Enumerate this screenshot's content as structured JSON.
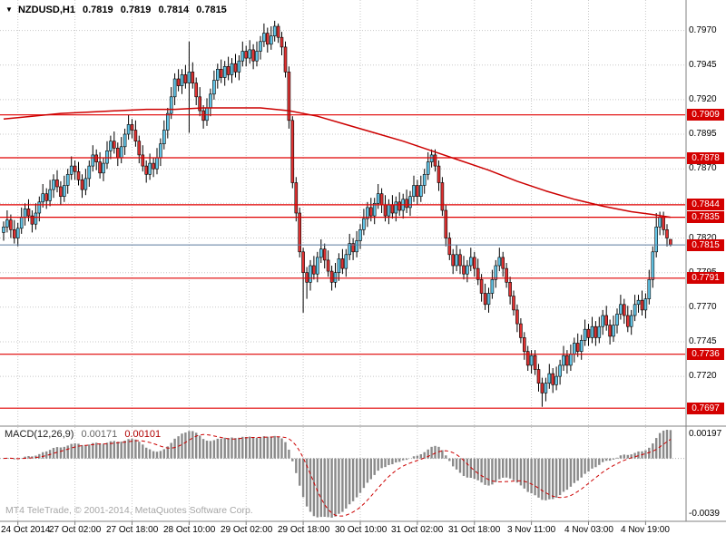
{
  "window": {
    "collapse_icon": "▼",
    "symbol": "NZDUSD,H1",
    "open": "0.7819",
    "high": "0.7819",
    "low": "0.7814",
    "close": "0.7815"
  },
  "watermark": "MT4 TeleTrade, © 2001-2014, MetaQuotes Software Corp.",
  "chart_data": {
    "type": "candlestick",
    "symbol": "NZDUSD",
    "timeframe": "H1",
    "price_axis": {
      "ticks": [
        0.797,
        0.7945,
        0.792,
        0.7895,
        0.787,
        0.7845,
        0.782,
        0.7795,
        0.777,
        0.7745,
        0.772
      ],
      "ylim": [
        0.7686,
        0.7992
      ]
    },
    "time_axis": {
      "labels": [
        "24 Oct 2014",
        "27 Oct 02:00",
        "27 Oct 18:00",
        "28 Oct 10:00",
        "29 Oct 02:00",
        "29 Oct 18:00",
        "30 Oct 10:00",
        "31 Oct 02:00",
        "31 Oct 18:00",
        "3 Nov 11:00",
        "4 Nov 03:00",
        "4 Nov 19:00"
      ],
      "label_bar_indexes": [
        4,
        20,
        36,
        52,
        68,
        84,
        100,
        116,
        132,
        148,
        164,
        180
      ]
    },
    "levels": [
      0.7909,
      0.7878,
      0.7844,
      0.7835,
      0.7791,
      0.7736,
      0.7697
    ],
    "current_price": 0.7815,
    "candles": [
      [
        0.7824,
        0.7832,
        0.7818,
        0.7828
      ],
      [
        0.7828,
        0.784,
        0.7824,
        0.7833
      ],
      [
        0.7833,
        0.7837,
        0.782,
        0.7826
      ],
      [
        0.7826,
        0.7833,
        0.7816,
        0.782
      ],
      [
        0.782,
        0.7831,
        0.7814,
        0.7827
      ],
      [
        0.7827,
        0.7842,
        0.7823,
        0.7835
      ],
      [
        0.7835,
        0.7845,
        0.7829,
        0.7841
      ],
      [
        0.7841,
        0.7848,
        0.7832,
        0.7836
      ],
      [
        0.7836,
        0.784,
        0.7824,
        0.783
      ],
      [
        0.783,
        0.7845,
        0.7826,
        0.7838
      ],
      [
        0.7838,
        0.785,
        0.7832,
        0.7846
      ],
      [
        0.7846,
        0.7859,
        0.7842,
        0.7852
      ],
      [
        0.7852,
        0.7856,
        0.7841,
        0.7847
      ],
      [
        0.7847,
        0.7862,
        0.7843,
        0.7855
      ],
      [
        0.7855,
        0.7866,
        0.7849,
        0.7862
      ],
      [
        0.7862,
        0.7869,
        0.7853,
        0.7857
      ],
      [
        0.7857,
        0.7861,
        0.7844,
        0.785
      ],
      [
        0.785,
        0.7865,
        0.7846,
        0.7858
      ],
      [
        0.7858,
        0.787,
        0.7852,
        0.7866
      ],
      [
        0.7866,
        0.7879,
        0.7862,
        0.7872
      ],
      [
        0.7872,
        0.7876,
        0.7862,
        0.7868
      ],
      [
        0.7868,
        0.7875,
        0.7858,
        0.7862
      ],
      [
        0.7862,
        0.7866,
        0.7849,
        0.7855
      ],
      [
        0.7855,
        0.787,
        0.7851,
        0.7863
      ],
      [
        0.7863,
        0.7876,
        0.7857,
        0.7872
      ],
      [
        0.7872,
        0.7887,
        0.7868,
        0.788
      ],
      [
        0.788,
        0.7884,
        0.7869,
        0.7875
      ],
      [
        0.7875,
        0.7882,
        0.7863,
        0.7867
      ],
      [
        0.7867,
        0.7878,
        0.7861,
        0.7874
      ],
      [
        0.7874,
        0.789,
        0.787,
        0.7883
      ],
      [
        0.7883,
        0.7894,
        0.7877,
        0.789
      ],
      [
        0.789,
        0.7897,
        0.7881,
        0.7885
      ],
      [
        0.7885,
        0.7889,
        0.7872,
        0.7878
      ],
      [
        0.7878,
        0.7893,
        0.7874,
        0.7886
      ],
      [
        0.7886,
        0.7899,
        0.788,
        0.7895
      ],
      [
        0.7895,
        0.7909,
        0.7891,
        0.7902
      ],
      [
        0.7902,
        0.7906,
        0.7892,
        0.7898
      ],
      [
        0.7898,
        0.7905,
        0.7886,
        0.789
      ],
      [
        0.789,
        0.7894,
        0.7874,
        0.788
      ],
      [
        0.788,
        0.7887,
        0.7868,
        0.7872
      ],
      [
        0.7872,
        0.7876,
        0.786,
        0.7866
      ],
      [
        0.7866,
        0.7881,
        0.7862,
        0.7874
      ],
      [
        0.7874,
        0.7878,
        0.7864,
        0.787
      ],
      [
        0.787,
        0.7885,
        0.7866,
        0.7878
      ],
      [
        0.7878,
        0.7892,
        0.7872,
        0.7888
      ],
      [
        0.7888,
        0.7905,
        0.7884,
        0.7898
      ],
      [
        0.7898,
        0.7914,
        0.7892,
        0.791
      ],
      [
        0.791,
        0.7929,
        0.7906,
        0.7922
      ],
      [
        0.7922,
        0.7939,
        0.7916,
        0.7935
      ],
      [
        0.7935,
        0.7942,
        0.7926,
        0.793
      ],
      [
        0.793,
        0.7942,
        0.7924,
        0.7938
      ],
      [
        0.7938,
        0.7945,
        0.7928,
        0.7932
      ],
      [
        0.7932,
        0.7962,
        0.7896,
        0.794
      ],
      [
        0.794,
        0.7947,
        0.7928,
        0.7932
      ],
      [
        0.7932,
        0.7936,
        0.7916,
        0.7922
      ],
      [
        0.7922,
        0.7929,
        0.7908,
        0.7912
      ],
      [
        0.7912,
        0.7916,
        0.7899,
        0.7905
      ],
      [
        0.7905,
        0.7921,
        0.7901,
        0.7914
      ],
      [
        0.7914,
        0.7928,
        0.7908,
        0.7924
      ],
      [
        0.7924,
        0.7941,
        0.792,
        0.7934
      ],
      [
        0.7934,
        0.7946,
        0.7928,
        0.7942
      ],
      [
        0.7942,
        0.7949,
        0.7932,
        0.7936
      ],
      [
        0.7936,
        0.7948,
        0.793,
        0.7944
      ],
      [
        0.7944,
        0.7951,
        0.7934,
        0.7938
      ],
      [
        0.7938,
        0.795,
        0.7932,
        0.7946
      ],
      [
        0.7946,
        0.7953,
        0.7936,
        0.794
      ],
      [
        0.794,
        0.7952,
        0.7934,
        0.7948
      ],
      [
        0.7948,
        0.7962,
        0.7944,
        0.7955
      ],
      [
        0.7955,
        0.7959,
        0.7944,
        0.795
      ],
      [
        0.795,
        0.7963,
        0.7946,
        0.7956
      ],
      [
        0.7956,
        0.796,
        0.7942,
        0.7948
      ],
      [
        0.7948,
        0.7962,
        0.7944,
        0.7955
      ],
      [
        0.7955,
        0.7966,
        0.7949,
        0.7962
      ],
      [
        0.7962,
        0.7975,
        0.7958,
        0.7968
      ],
      [
        0.7968,
        0.7972,
        0.7954,
        0.796
      ],
      [
        0.796,
        0.7973,
        0.7956,
        0.7966
      ],
      [
        0.7966,
        0.7977,
        0.7962,
        0.7973
      ],
      [
        0.7973,
        0.7975,
        0.7961,
        0.7965
      ],
      [
        0.7965,
        0.7969,
        0.7952,
        0.7958
      ],
      [
        0.7958,
        0.7962,
        0.7936,
        0.794
      ],
      [
        0.794,
        0.7944,
        0.7899,
        0.7905
      ],
      [
        0.7905,
        0.7908,
        0.7856,
        0.786
      ],
      [
        0.786,
        0.7864,
        0.7832,
        0.7838
      ],
      [
        0.7838,
        0.7842,
        0.7806,
        0.781
      ],
      [
        0.781,
        0.7813,
        0.7766,
        0.7795
      ],
      [
        0.7795,
        0.7799,
        0.7776,
        0.7788
      ],
      [
        0.7788,
        0.7804,
        0.7782,
        0.78
      ],
      [
        0.78,
        0.7807,
        0.779,
        0.7794
      ],
      [
        0.7794,
        0.781,
        0.7788,
        0.7806
      ],
      [
        0.7806,
        0.7819,
        0.7802,
        0.7812
      ],
      [
        0.7812,
        0.7816,
        0.7798,
        0.7804
      ],
      [
        0.7804,
        0.7811,
        0.7792,
        0.7796
      ],
      [
        0.7796,
        0.78,
        0.7782,
        0.7788
      ],
      [
        0.7788,
        0.7802,
        0.7784,
        0.7795
      ],
      [
        0.7795,
        0.7809,
        0.7789,
        0.7805
      ],
      [
        0.7805,
        0.7812,
        0.7794,
        0.7798
      ],
      [
        0.7798,
        0.7812,
        0.7792,
        0.7808
      ],
      [
        0.7808,
        0.7823,
        0.7804,
        0.7816
      ],
      [
        0.7816,
        0.782,
        0.7804,
        0.781
      ],
      [
        0.781,
        0.7825,
        0.7806,
        0.7818
      ],
      [
        0.7818,
        0.783,
        0.7812,
        0.7826
      ],
      [
        0.7826,
        0.7841,
        0.7822,
        0.7834
      ],
      [
        0.7834,
        0.7846,
        0.7828,
        0.7842
      ],
      [
        0.7842,
        0.7849,
        0.7832,
        0.7836
      ],
      [
        0.7836,
        0.7849,
        0.783,
        0.7845
      ],
      [
        0.7845,
        0.7859,
        0.7841,
        0.7852
      ],
      [
        0.7852,
        0.7856,
        0.7838,
        0.7844
      ],
      [
        0.7844,
        0.7851,
        0.7832,
        0.7836
      ],
      [
        0.7836,
        0.7848,
        0.783,
        0.7844
      ],
      [
        0.7844,
        0.7851,
        0.7834,
        0.7838
      ],
      [
        0.7838,
        0.785,
        0.7832,
        0.7846
      ],
      [
        0.7846,
        0.7853,
        0.7836,
        0.784
      ],
      [
        0.784,
        0.7852,
        0.7834,
        0.7848
      ],
      [
        0.7848,
        0.7855,
        0.7838,
        0.7842
      ],
      [
        0.7842,
        0.7854,
        0.7836,
        0.785
      ],
      [
        0.785,
        0.7865,
        0.7846,
        0.7858
      ],
      [
        0.7858,
        0.7862,
        0.7844,
        0.785
      ],
      [
        0.785,
        0.7865,
        0.7846,
        0.7858
      ],
      [
        0.7858,
        0.787,
        0.7852,
        0.7866
      ],
      [
        0.7866,
        0.7882,
        0.7862,
        0.7875
      ],
      [
        0.7875,
        0.7884,
        0.7871,
        0.788
      ],
      [
        0.788,
        0.7884,
        0.7868,
        0.7872
      ],
      [
        0.7872,
        0.7876,
        0.7854,
        0.786
      ],
      [
        0.786,
        0.7864,
        0.7836,
        0.784
      ],
      [
        0.784,
        0.7844,
        0.7814,
        0.782
      ],
      [
        0.782,
        0.7824,
        0.7804,
        0.7808
      ],
      [
        0.7808,
        0.7812,
        0.7794,
        0.78
      ],
      [
        0.78,
        0.7815,
        0.7796,
        0.7808
      ],
      [
        0.7808,
        0.7812,
        0.7794,
        0.78
      ],
      [
        0.78,
        0.7807,
        0.779,
        0.7794
      ],
      [
        0.7794,
        0.7804,
        0.7788,
        0.78
      ],
      [
        0.78,
        0.7813,
        0.7796,
        0.7806
      ],
      [
        0.7806,
        0.781,
        0.7792,
        0.7798
      ],
      [
        0.7798,
        0.7805,
        0.7786,
        0.779
      ],
      [
        0.779,
        0.7794,
        0.7774,
        0.778
      ],
      [
        0.778,
        0.7787,
        0.7768,
        0.7772
      ],
      [
        0.7772,
        0.7784,
        0.7766,
        0.778
      ],
      [
        0.778,
        0.7797,
        0.7776,
        0.779
      ],
      [
        0.779,
        0.7804,
        0.7784,
        0.78
      ],
      [
        0.78,
        0.7813,
        0.7796,
        0.7806
      ],
      [
        0.7806,
        0.781,
        0.7792,
        0.7798
      ],
      [
        0.7798,
        0.7802,
        0.7784,
        0.7788
      ],
      [
        0.7788,
        0.7792,
        0.7772,
        0.7778
      ],
      [
        0.7778,
        0.7782,
        0.7764,
        0.7768
      ],
      [
        0.7768,
        0.7772,
        0.7752,
        0.7758
      ],
      [
        0.7758,
        0.7762,
        0.7744,
        0.7748
      ],
      [
        0.7748,
        0.7752,
        0.7732,
        0.7738
      ],
      [
        0.7738,
        0.7742,
        0.7724,
        0.7728
      ],
      [
        0.7728,
        0.7739,
        0.7722,
        0.7735
      ],
      [
        0.7735,
        0.7739,
        0.7721,
        0.7725
      ],
      [
        0.7725,
        0.7729,
        0.7709,
        0.7715
      ],
      [
        0.7715,
        0.7719,
        0.7698,
        0.7708
      ],
      [
        0.7708,
        0.7719,
        0.7702,
        0.7715
      ],
      [
        0.7715,
        0.7729,
        0.7711,
        0.7722
      ],
      [
        0.7722,
        0.7726,
        0.7708,
        0.7714
      ],
      [
        0.7714,
        0.7727,
        0.771,
        0.772
      ],
      [
        0.772,
        0.7732,
        0.7714,
        0.7728
      ],
      [
        0.7728,
        0.7742,
        0.7724,
        0.7735
      ],
      [
        0.7735,
        0.7739,
        0.7722,
        0.7728
      ],
      [
        0.7728,
        0.7743,
        0.7724,
        0.7736
      ],
      [
        0.7736,
        0.7748,
        0.773,
        0.7744
      ],
      [
        0.7744,
        0.7751,
        0.7734,
        0.7738
      ],
      [
        0.7738,
        0.775,
        0.7732,
        0.7746
      ],
      [
        0.7746,
        0.7761,
        0.7742,
        0.7754
      ],
      [
        0.7754,
        0.7758,
        0.7742,
        0.7748
      ],
      [
        0.7748,
        0.7763,
        0.7744,
        0.7756
      ],
      [
        0.7756,
        0.776,
        0.7742,
        0.7748
      ],
      [
        0.7748,
        0.7763,
        0.7744,
        0.7756
      ],
      [
        0.7756,
        0.7768,
        0.775,
        0.7764
      ],
      [
        0.7764,
        0.7771,
        0.7753,
        0.7757
      ],
      [
        0.7757,
        0.7761,
        0.7743,
        0.7749
      ],
      [
        0.7749,
        0.7764,
        0.7745,
        0.7757
      ],
      [
        0.7757,
        0.7769,
        0.7751,
        0.7765
      ],
      [
        0.7765,
        0.7779,
        0.7761,
        0.7772
      ],
      [
        0.7772,
        0.7776,
        0.7758,
        0.7764
      ],
      [
        0.7764,
        0.7771,
        0.7752,
        0.7756
      ],
      [
        0.7756,
        0.7768,
        0.775,
        0.7764
      ],
      [
        0.7764,
        0.7779,
        0.776,
        0.7772
      ],
      [
        0.7772,
        0.7779,
        0.7766,
        0.7775
      ],
      [
        0.7775,
        0.7782,
        0.7764,
        0.7768
      ],
      [
        0.7768,
        0.778,
        0.7762,
        0.7776
      ],
      [
        0.7776,
        0.7797,
        0.7772,
        0.779
      ],
      [
        0.779,
        0.7814,
        0.7784,
        0.781
      ],
      [
        0.781,
        0.7838,
        0.7806,
        0.7828
      ],
      [
        0.7828,
        0.7839,
        0.7822,
        0.7835
      ],
      [
        0.7835,
        0.7839,
        0.7822,
        0.7826
      ],
      [
        0.7826,
        0.783,
        0.7814,
        0.782
      ],
      [
        0.7819,
        0.7819,
        0.7814,
        0.7815
      ]
    ],
    "ma_line": [
      [
        0,
        0.7906
      ],
      [
        8,
        0.7908
      ],
      [
        16,
        0.791
      ],
      [
        24,
        0.7911
      ],
      [
        32,
        0.7912
      ],
      [
        40,
        0.7913
      ],
      [
        48,
        0.7913
      ],
      [
        56,
        0.7914
      ],
      [
        64,
        0.7914
      ],
      [
        72,
        0.7914
      ],
      [
        80,
        0.7912
      ],
      [
        88,
        0.7908
      ],
      [
        96,
        0.7902
      ],
      [
        104,
        0.7896
      ],
      [
        112,
        0.789
      ],
      [
        120,
        0.7883
      ],
      [
        128,
        0.7876
      ],
      [
        136,
        0.7869
      ],
      [
        144,
        0.7861
      ],
      [
        152,
        0.7854
      ],
      [
        160,
        0.7848
      ],
      [
        168,
        0.7843
      ],
      [
        176,
        0.7839
      ],
      [
        182,
        0.7837
      ],
      [
        187,
        0.7835
      ]
    ],
    "macd": {
      "label": "MACD(12,26,9)",
      "main_value": "0.00171",
      "signal_value": "0.00101",
      "scale_top": "0.00197",
      "scale_bottom": "-0.0039",
      "fast_ema": 12,
      "slow_ema": 26,
      "signal_period": 9
    },
    "colors": {
      "bull": "#63c6e8",
      "bear": "#e03232",
      "outline": "#000000",
      "level_line": "#e00000",
      "tag_bg": "#d40000",
      "tag_text": "#ffffff",
      "ma_line": "#cc0000",
      "grid": "#c8c8c8",
      "macd_bar": "#8a8a8a",
      "macd_signal": "#cc0000",
      "current_price_line": "#5b7a9d",
      "frame": "#808080",
      "text": "#000000",
      "watermark": "#a6a6a6"
    }
  }
}
